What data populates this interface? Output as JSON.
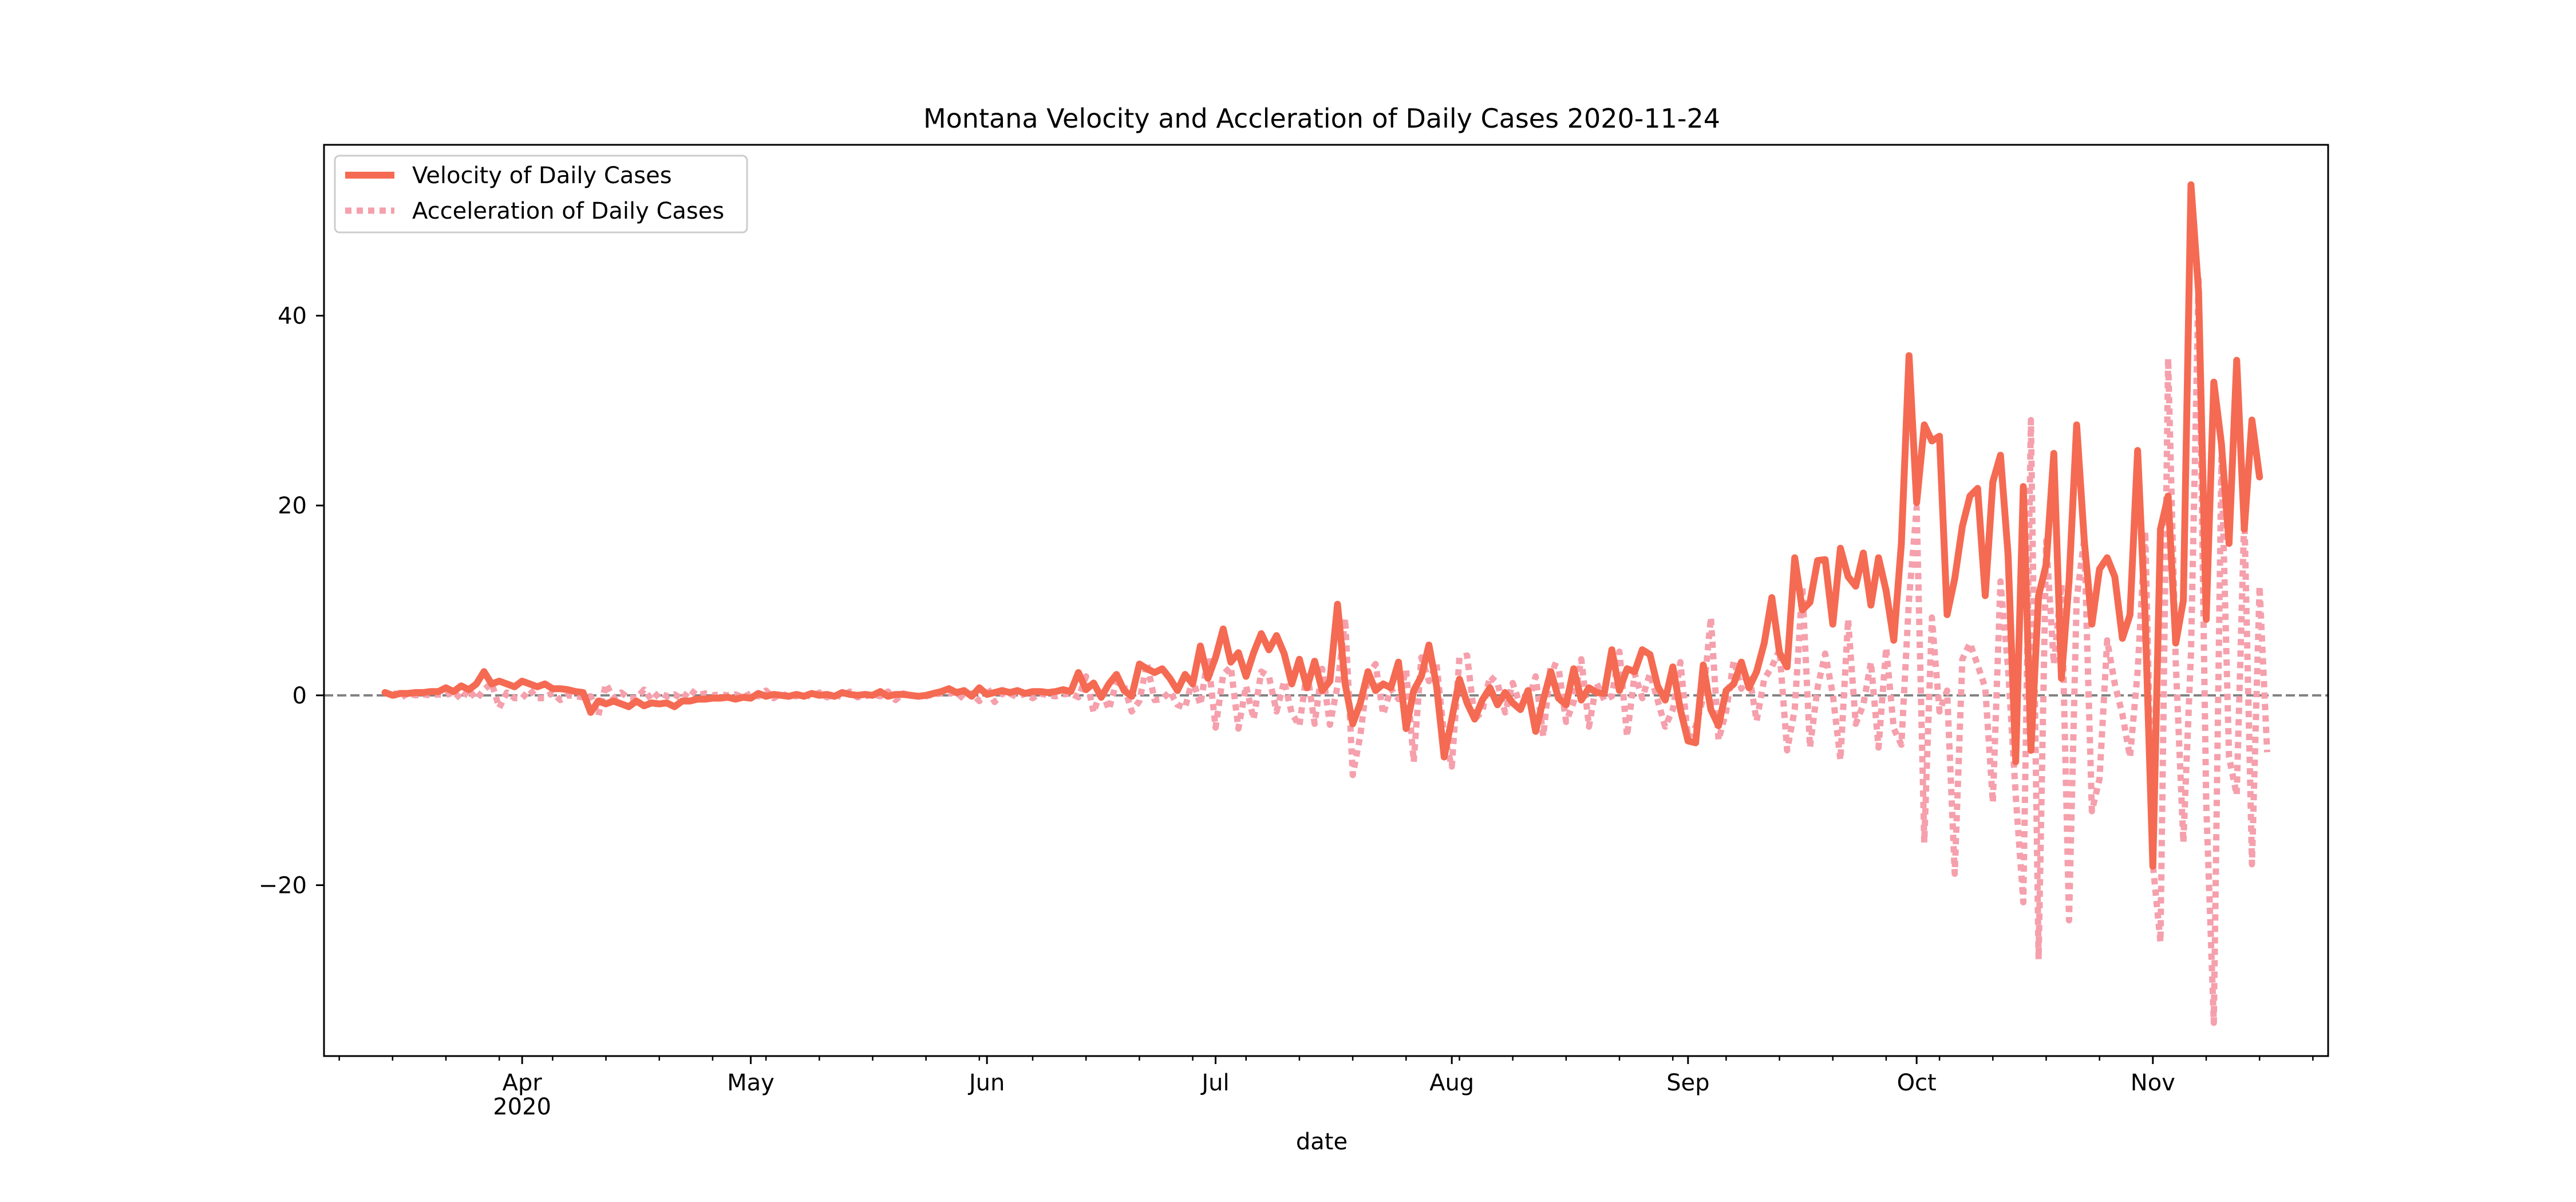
{
  "chart_data": {
    "type": "line",
    "title": "Montana Velocity and Accleration of Daily Cases 2020-11-24",
    "xlabel": "date",
    "ylabel": "",
    "x_range": [
      "2020-03-06",
      "2020-11-24"
    ],
    "ylim": [
      -38,
      58
    ],
    "yticks": [
      -20,
      0,
      20,
      40
    ],
    "ytick_labels": [
      "−20",
      "0",
      "20",
      "40"
    ],
    "xticks_major": [
      {
        "date": "2020-04-01",
        "label": "Apr",
        "sublabel": "2020"
      },
      {
        "date": "2020-05-01",
        "label": "May",
        "sublabel": ""
      },
      {
        "date": "2020-06-01",
        "label": "Jun",
        "sublabel": ""
      },
      {
        "date": "2020-07-01",
        "label": "Jul",
        "sublabel": ""
      },
      {
        "date": "2020-08-01",
        "label": "Aug",
        "sublabel": ""
      },
      {
        "date": "2020-09-01",
        "label": "Sep",
        "sublabel": ""
      },
      {
        "date": "2020-10-01",
        "label": "Oct",
        "sublabel": ""
      },
      {
        "date": "2020-11-01",
        "label": "Nov",
        "sublabel": ""
      }
    ],
    "zero_line": {
      "y": 0,
      "color": "#808080",
      "style": "dashed"
    },
    "legend": {
      "placement": "top-left"
    },
    "series": [
      {
        "name": "Velocity of Daily Cases",
        "color": "#f56a52",
        "style": "solid",
        "start_date": "2020-03-14",
        "values": [
          0.3,
          0.0,
          0.2,
          0.2,
          0.3,
          0.3,
          0.4,
          0.4,
          0.8,
          0.4,
          1.0,
          0.6,
          1.2,
          2.5,
          1.2,
          1.5,
          1.2,
          0.9,
          1.5,
          1.2,
          0.9,
          1.2,
          0.7,
          0.7,
          0.6,
          0.4,
          0.3,
          -1.8,
          -0.6,
          -0.9,
          -0.6,
          -0.9,
          -1.2,
          -0.6,
          -1.1,
          -0.8,
          -0.9,
          -0.8,
          -1.2,
          -0.6,
          -0.6,
          -0.4,
          -0.4,
          -0.3,
          -0.3,
          -0.2,
          -0.4,
          -0.2,
          -0.3,
          0.2,
          -0.1,
          0.1,
          0.0,
          -0.1,
          0.1,
          -0.1,
          0.2,
          0.0,
          0.1,
          -0.1,
          0.3,
          0.1,
          0.0,
          0.1,
          0.0,
          0.4,
          -0.1,
          0.1,
          0.1,
          0.0,
          -0.1,
          0.0,
          0.2,
          0.4,
          0.7,
          0.3,
          0.5,
          -0.1,
          0.8,
          0.1,
          0.3,
          0.5,
          0.3,
          0.5,
          0.2,
          0.4,
          0.4,
          0.3,
          0.4,
          0.6,
          0.4,
          2.4,
          0.6,
          1.3,
          -0.2,
          1.2,
          2.2,
          0.5,
          -0.1,
          3.3,
          2.8,
          2.4,
          2.8,
          1.8,
          0.5,
          2.2,
          1.2,
          5.2,
          1.8,
          4.0,
          7.0,
          3.5,
          4.5,
          2.0,
          4.5,
          6.5,
          4.8,
          6.3,
          4.4,
          1.2,
          3.8,
          0.8,
          3.6,
          0.5,
          1.5,
          9.6,
          1.2,
          -3.0,
          -0.8,
          2.5,
          0.5,
          1.2,
          0.8,
          3.5,
          -3.5,
          0.5,
          2.0,
          5.3,
          1.0,
          -6.5,
          -2.5,
          1.7,
          -0.8,
          -2.5,
          -0.5,
          0.8,
          -1.0,
          0.3,
          -0.8,
          -1.5,
          0.5,
          -3.8,
          -0.5,
          2.5,
          -0.3,
          -1.0,
          2.8,
          -0.5,
          0.8,
          0.3,
          0.2,
          4.8,
          0.5,
          2.8,
          2.5,
          4.8,
          4.3,
          1.0,
          -0.5,
          3.0,
          -1.5,
          -4.8,
          -5.0,
          3.2,
          -1.5,
          -3.2,
          0.5,
          1.2,
          3.5,
          0.8,
          2.5,
          5.5,
          10.3,
          4.5,
          3.0,
          14.5,
          9.0,
          9.8,
          14.2,
          14.3,
          7.5,
          15.5,
          12.5,
          11.5,
          15.0,
          9.5,
          14.5,
          11.0,
          5.8,
          16.0,
          35.8,
          20.3,
          28.5,
          26.8,
          27.3,
          8.5,
          12.3,
          17.8,
          21.0,
          21.8,
          10.5,
          22.5,
          25.3,
          14.8,
          -7.0,
          22.0,
          -5.8,
          10.5,
          13.8,
          25.5,
          1.8,
          12.0,
          28.5,
          16.3,
          7.5,
          13.3,
          14.5,
          12.5,
          6.0,
          8.5,
          25.8,
          8.0,
          -18.0,
          17.5,
          21.0,
          5.5,
          10.0,
          53.8,
          42.5,
          8.0,
          33.0,
          26.5,
          16.0,
          35.3,
          17.5,
          29.0,
          23.0
        ]
      },
      {
        "name": "Acceleration of Daily Cases",
        "color": "#f5a0ac",
        "style": "dotted",
        "start_date": "2020-03-15",
        "values": [
          0.3,
          -0.3,
          0.2,
          0.0,
          0.1,
          0.0,
          0.1,
          0.0,
          0.4,
          -0.4,
          0.6,
          -0.4,
          0.6,
          1.3,
          -1.3,
          0.3,
          -0.3,
          -0.3,
          0.6,
          -0.3,
          -0.3,
          0.3,
          -0.5,
          0.0,
          -0.1,
          -0.2,
          -0.1,
          -2.1,
          1.2,
          -0.3,
          0.3,
          -0.3,
          -0.3,
          0.6,
          -0.5,
          0.3,
          -0.1,
          0.1,
          -0.4,
          0.6,
          0.0,
          0.2,
          0.0,
          0.1,
          0.0,
          0.1,
          -0.2,
          0.2,
          -0.1,
          0.5,
          -0.3,
          0.2,
          -0.1,
          -0.1,
          0.2,
          -0.2,
          0.3,
          -0.2,
          0.1,
          -0.2,
          0.4,
          -0.2,
          -0.1,
          0.1,
          -0.1,
          0.4,
          -0.5,
          0.2,
          0.0,
          -0.1,
          -0.1,
          0.1,
          0.2,
          0.2,
          0.3,
          -0.4,
          0.2,
          -0.6,
          0.9,
          -0.7,
          0.2,
          0.2,
          -0.2,
          0.2,
          -0.3,
          0.2,
          0.0,
          -0.1,
          0.1,
          0.2,
          -0.2,
          2.0,
          -1.8,
          0.7,
          -1.5,
          1.4,
          1.0,
          -1.7,
          -0.6,
          3.4,
          -0.5,
          -0.4,
          0.4,
          -1.0,
          -1.3,
          1.7,
          -1.0,
          4.0,
          -3.4,
          2.2,
          3.0,
          -3.5,
          1.0,
          -2.5,
          2.5,
          2.0,
          -1.7,
          1.5,
          -1.9,
          -3.2,
          2.6,
          -3.0,
          2.8,
          -3.1,
          1.0,
          8.1,
          -8.4,
          -4.2,
          2.2,
          3.3,
          -2.0,
          0.7,
          -0.4,
          2.7,
          -7.0,
          4.0,
          1.5,
          3.3,
          -4.3,
          -7.5,
          4.0,
          4.2,
          -2.5,
          -1.7,
          2.0,
          1.3,
          -1.8,
          1.3,
          -1.1,
          -0.7,
          2.0,
          -4.3,
          3.3,
          3.0,
          -2.8,
          -0.7,
          3.8,
          -3.3,
          1.3,
          -0.5,
          -0.1,
          4.6,
          -4.3,
          2.3,
          -0.3,
          2.3,
          -0.5,
          -3.3,
          -1.5,
          3.5,
          -4.5,
          -3.3,
          -0.2,
          8.2,
          -4.7,
          -1.7,
          3.7,
          0.7,
          2.3,
          -2.7,
          1.7,
          3.0,
          4.8,
          -5.8,
          -1.5,
          11.5,
          -5.5,
          0.8,
          4.4,
          0.1,
          -6.8,
          8.0,
          -3.0,
          -1.0,
          3.5,
          -5.5,
          5.0,
          -3.5,
          -5.2,
          10.2,
          19.8,
          -15.5,
          8.2,
          -1.7,
          0.5,
          -18.8,
          3.8,
          5.5,
          3.2,
          0.8,
          -11.3,
          12.0,
          2.8,
          -10.5,
          -21.8,
          29.0,
          -27.8,
          16.3,
          3.3,
          11.7,
          -23.7,
          10.2,
          16.5,
          -12.2,
          -8.8,
          5.8,
          1.2,
          -2.0,
          -6.5,
          2.5,
          17.3,
          -17.8,
          -26.0,
          35.5,
          3.5,
          -15.5,
          4.5,
          43.8,
          -11.3,
          -34.5,
          25.0,
          -6.5,
          -10.5,
          19.3,
          -17.8,
          11.5,
          -6.0
        ]
      }
    ]
  }
}
